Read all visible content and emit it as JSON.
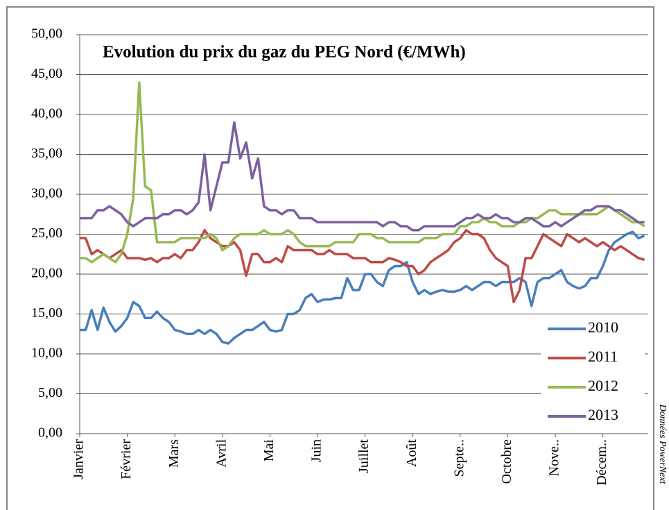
{
  "chart_data": {
    "type": "line",
    "title": "Evolution du prix du gaz du PEG Nord (€/MWh)",
    "source": "Données PowerNext",
    "categories": [
      "Janvier",
      null,
      null,
      null,
      null,
      null,
      null,
      null,
      "Février",
      null,
      null,
      null,
      null,
      null,
      null,
      null,
      "Mars",
      null,
      null,
      null,
      null,
      null,
      null,
      null,
      "Avril",
      null,
      null,
      null,
      null,
      null,
      null,
      null,
      "Mai",
      null,
      null,
      null,
      null,
      null,
      null,
      null,
      "Juin",
      null,
      null,
      null,
      null,
      null,
      null,
      null,
      "Juillet",
      null,
      null,
      null,
      null,
      null,
      null,
      null,
      "Août",
      null,
      null,
      null,
      null,
      null,
      null,
      null,
      "Septe..",
      null,
      null,
      null,
      null,
      null,
      null,
      null,
      "Octobre",
      null,
      null,
      null,
      null,
      null,
      null,
      null,
      "Nove..",
      null,
      null,
      null,
      null,
      null,
      null,
      null,
      "Décem..",
      null,
      null,
      null,
      null,
      null,
      null,
      null
    ],
    "series": [
      {
        "name": "2010",
        "color": "#4a7ebb",
        "values": [
          13,
          13,
          15.5,
          13,
          15.8,
          14,
          12.8,
          13.5,
          14.5,
          16.5,
          16,
          14.5,
          14.5,
          15.3,
          14.5,
          14,
          13,
          12.8,
          12.5,
          12.5,
          13,
          12.5,
          13,
          12.5,
          11.5,
          11.3,
          12,
          12.5,
          13,
          13,
          13.5,
          14,
          13,
          12.8,
          13,
          15,
          15,
          15.5,
          17,
          17.5,
          16.5,
          16.8,
          16.8,
          17,
          17,
          19.5,
          18,
          18,
          20,
          20,
          19,
          18.5,
          20.5,
          21,
          21,
          21.5,
          19,
          17.5,
          18,
          17.5,
          17.8,
          18,
          17.8,
          17.8,
          18,
          18.5,
          18,
          18.5,
          19,
          19,
          18.5,
          19,
          19,
          19,
          19.5,
          19,
          16,
          19,
          19.5,
          19.5,
          20,
          20.5,
          19,
          18.5,
          18.2,
          18.5,
          19.5,
          19.5,
          21,
          23,
          24,
          24.5,
          25,
          25.3,
          24.5,
          24.8
        ]
      },
      {
        "name": "2011",
        "color": "#be4b48",
        "values": [
          24.5,
          24.5,
          22.5,
          23,
          22.5,
          22,
          22.5,
          23,
          22,
          22,
          22,
          21.8,
          22,
          21.5,
          22,
          22,
          22.5,
          22,
          23,
          23,
          24,
          25.5,
          24.5,
          24,
          23.5,
          23.5,
          24,
          23,
          19.8,
          22.5,
          22.5,
          21.5,
          21.5,
          22,
          21.5,
          23.5,
          23,
          23,
          23,
          23,
          22.5,
          22.5,
          23,
          22.5,
          22.5,
          22.5,
          22,
          22,
          22,
          21.5,
          21.5,
          21.5,
          22,
          21.8,
          21.5,
          21,
          21,
          20,
          20.5,
          21.5,
          22,
          22.5,
          23,
          24,
          24.5,
          25.5,
          25,
          25,
          24.5,
          23,
          22,
          21.5,
          21,
          16.5,
          18,
          22,
          22,
          23.5,
          25,
          24.5,
          24,
          23.5,
          25,
          24.5,
          24,
          24.5,
          24,
          23.5,
          24,
          23.5,
          23,
          23.5,
          23,
          22.5,
          22,
          21.8
        ]
      },
      {
        "name": "2012",
        "color": "#98b954",
        "values": [
          22,
          22,
          21.5,
          22,
          22.5,
          22,
          21.5,
          22.5,
          25,
          29.5,
          44,
          31,
          30.5,
          24,
          24,
          24,
          24,
          24.5,
          24.5,
          24.5,
          24.5,
          24.5,
          25,
          24.5,
          23,
          23.5,
          24.5,
          25,
          25,
          25,
          25,
          25.5,
          25,
          25,
          25,
          25.5,
          25,
          24,
          23.5,
          23.5,
          23.5,
          23.5,
          23.5,
          24,
          24,
          24,
          24,
          25,
          25,
          25,
          24.5,
          24.5,
          24,
          24,
          24,
          24,
          24,
          24,
          24.5,
          24.5,
          24.5,
          25,
          25,
          25,
          26,
          26,
          26.5,
          26.5,
          27,
          26.5,
          26.5,
          26,
          26,
          26,
          26.5,
          26.5,
          27,
          27,
          27.5,
          28,
          28,
          27.5,
          27.5,
          27.5,
          27.5,
          27.5,
          27.5,
          27.5,
          28,
          28.5,
          28,
          27.5,
          27,
          26.5,
          26.5,
          26
        ]
      },
      {
        "name": "2013",
        "color": "#7d60a0",
        "values": [
          27,
          27,
          27,
          28,
          28,
          28.5,
          28,
          27.5,
          26.5,
          26,
          26.5,
          27,
          27,
          27,
          27.5,
          27.5,
          28,
          28,
          27.5,
          28,
          29,
          35,
          28,
          31,
          34,
          34,
          39,
          34.5,
          36.5,
          32,
          34.5,
          28.5,
          28,
          28,
          27.5,
          28,
          28,
          27,
          27,
          27,
          26.5,
          26.5,
          26.5,
          26.5,
          26.5,
          26.5,
          26.5,
          26.5,
          26.5,
          26.5,
          26.5,
          26,
          26.5,
          26.5,
          26,
          26,
          25.5,
          25.5,
          26,
          26,
          26,
          26,
          26,
          26,
          26.5,
          27,
          27,
          27.5,
          27,
          27,
          27.5,
          27,
          27,
          26.5,
          26.5,
          27,
          27,
          26.5,
          26,
          26,
          26.5,
          26,
          26.5,
          27,
          27.5,
          28,
          28,
          28.5,
          28.5,
          28.5,
          28,
          28,
          27.5,
          27,
          26.5,
          26.5
        ]
      }
    ],
    "ylim": [
      0,
      50
    ],
    "yticks": [
      {
        "value": 0,
        "label": "0,00"
      },
      {
        "value": 5,
        "label": "5,00"
      },
      {
        "value": 10,
        "label": "10,00"
      },
      {
        "value": 15,
        "label": "15,00"
      },
      {
        "value": 20,
        "label": "20,00"
      },
      {
        "value": 25,
        "label": "25,00"
      },
      {
        "value": 30,
        "label": "30,00"
      },
      {
        "value": 35,
        "label": "35,00"
      },
      {
        "value": 40,
        "label": "40,00"
      },
      {
        "value": 45,
        "label": "45,00"
      },
      {
        "value": 50,
        "label": "50,00"
      }
    ],
    "grid": true,
    "legend": "bottom-right"
  }
}
